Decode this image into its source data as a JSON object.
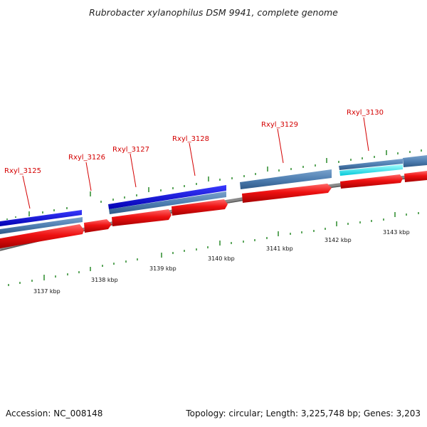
{
  "title": "Rubrobacter xylanophilus DSM 9941, complete genome",
  "accession": "Accession: NC_008148",
  "topology": "Topology: circular; Length: 3,225,748 bp; Genes: 3,203",
  "colors": {
    "cds_forward": "#e31a1c",
    "gene_track": "#4f7fb2",
    "blue_feature": "#1010d8",
    "cyan_feature": "#00e5ee",
    "backbone": "#7a7a7a",
    "tick": "#1f7a1f",
    "gene_label": "#d40000"
  },
  "scale_labels": [
    "3137 kbp",
    "3138 kbp",
    "3139 kbp",
    "3140 kbp",
    "3141 kbp",
    "3142 kbp",
    "3143 kbp"
  ],
  "gene_labels": [
    "Rxyl_3125",
    "Rxyl_3126",
    "Rxyl_3127",
    "Rxyl_3128",
    "Rxyl_3129",
    "Rxyl_3130"
  ]
}
